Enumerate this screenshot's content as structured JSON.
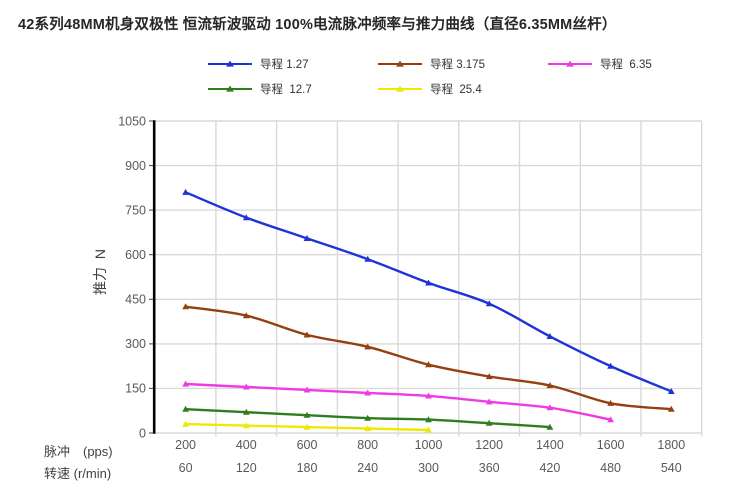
{
  "chart_data": {
    "type": "line",
    "title": "42系列48MM机身双极性 恒流斩波驱动 100%电流脉冲频率与推力曲线（直径6.35MM丝杆）",
    "grid": true,
    "legend_position": "top",
    "smooth_lines": true,
    "marker": "triangle-up",
    "y_axis": {
      "label": "推力  N",
      "min": 0,
      "max": 1050,
      "step": 150,
      "ticks": [
        "1050",
        "900",
        "750",
        "600",
        "450",
        "300",
        "150",
        "0"
      ],
      "tick_color": "#595959"
    },
    "x_axis": {
      "row1_label": "脉冲　(pps)",
      "row1_ticks": [
        "200",
        "400",
        "600",
        "800",
        "1000",
        "1200",
        "1400",
        "1600",
        "1800"
      ],
      "row2_label": "转速 (r/min)",
      "row2_ticks": [
        "60",
        "120",
        "180",
        "240",
        "300",
        "360",
        "420",
        "480",
        "540"
      ],
      "tick_color": "#595959"
    },
    "x": [
      200,
      400,
      600,
      800,
      1000,
      1200,
      1400,
      1600,
      1800
    ],
    "series": [
      {
        "name": "导程 1.27",
        "color": "#1e33d9",
        "values": [
          810,
          725,
          655,
          585,
          505,
          435,
          325,
          225,
          140
        ]
      },
      {
        "name": "导程 3.175",
        "color": "#95400f",
        "values": [
          425,
          395,
          330,
          290,
          230,
          190,
          160,
          100,
          80
        ]
      },
      {
        "name": "导程  6.35",
        "color": "#ef3be3",
        "values": [
          165,
          155,
          145,
          135,
          125,
          105,
          85,
          45
        ]
      },
      {
        "name": "导程  12.7",
        "color": "#2f7d1d",
        "values": [
          80,
          70,
          60,
          50,
          45,
          33,
          20
        ]
      },
      {
        "name": "导程  25.4",
        "color": "#ecea00",
        "values": [
          30,
          25,
          20,
          15,
          10
        ]
      }
    ],
    "style": {
      "gridline_color": "#d9d9d9",
      "y_axis_line_color": "#000000",
      "x_axis_line_color": "#d9d9d9",
      "background": "#ffffff"
    }
  }
}
